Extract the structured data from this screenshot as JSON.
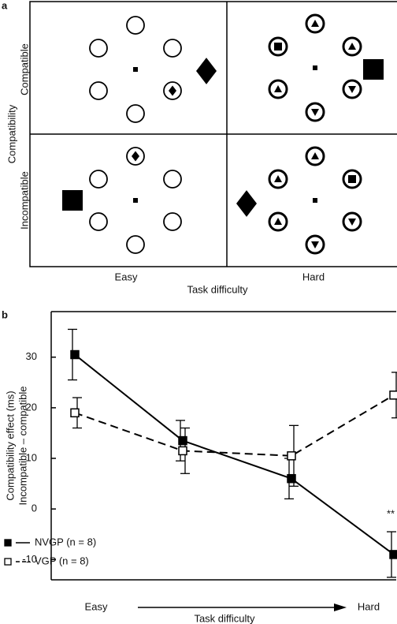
{
  "diagram": {
    "panel_label": "a",
    "axis_label": "Compatibility",
    "rows": [
      "Compatible",
      "Incompatible"
    ],
    "columns": [
      "Easy",
      "Hard"
    ],
    "x_label": "Task difficulty"
  },
  "chart_data": {
    "type": "line",
    "panel_label": "b",
    "y_label": [
      "Compatibility effect (ms)",
      "Incompatible – compatible"
    ],
    "x_label": "Task difficulty",
    "x_start": "Easy",
    "x_end": "Hard",
    "categories": [
      null,
      null,
      null,
      null
    ],
    "series": [
      {
        "name": "NVGP (n = 8)",
        "color": "#000000",
        "dash": false,
        "marker": "filled",
        "values": [
          30.5,
          13.5,
          6,
          -9
        ],
        "errors": [
          5,
          4,
          4,
          4.5
        ]
      },
      {
        "name": "VGP (n = 8)",
        "color": "#000000",
        "dash": true,
        "marker": "open",
        "values": [
          19,
          11.5,
          10.5,
          22.5
        ],
        "errors": [
          3,
          4.5,
          6,
          4.5
        ]
      }
    ],
    "annotations": [
      "**"
    ],
    "ylim": [
      -14,
      39
    ],
    "yticks": [
      -10,
      {
        "value": 0,
        "label": "0"
      },
      10,
      20,
      30
    ],
    "legend": "lower left"
  }
}
